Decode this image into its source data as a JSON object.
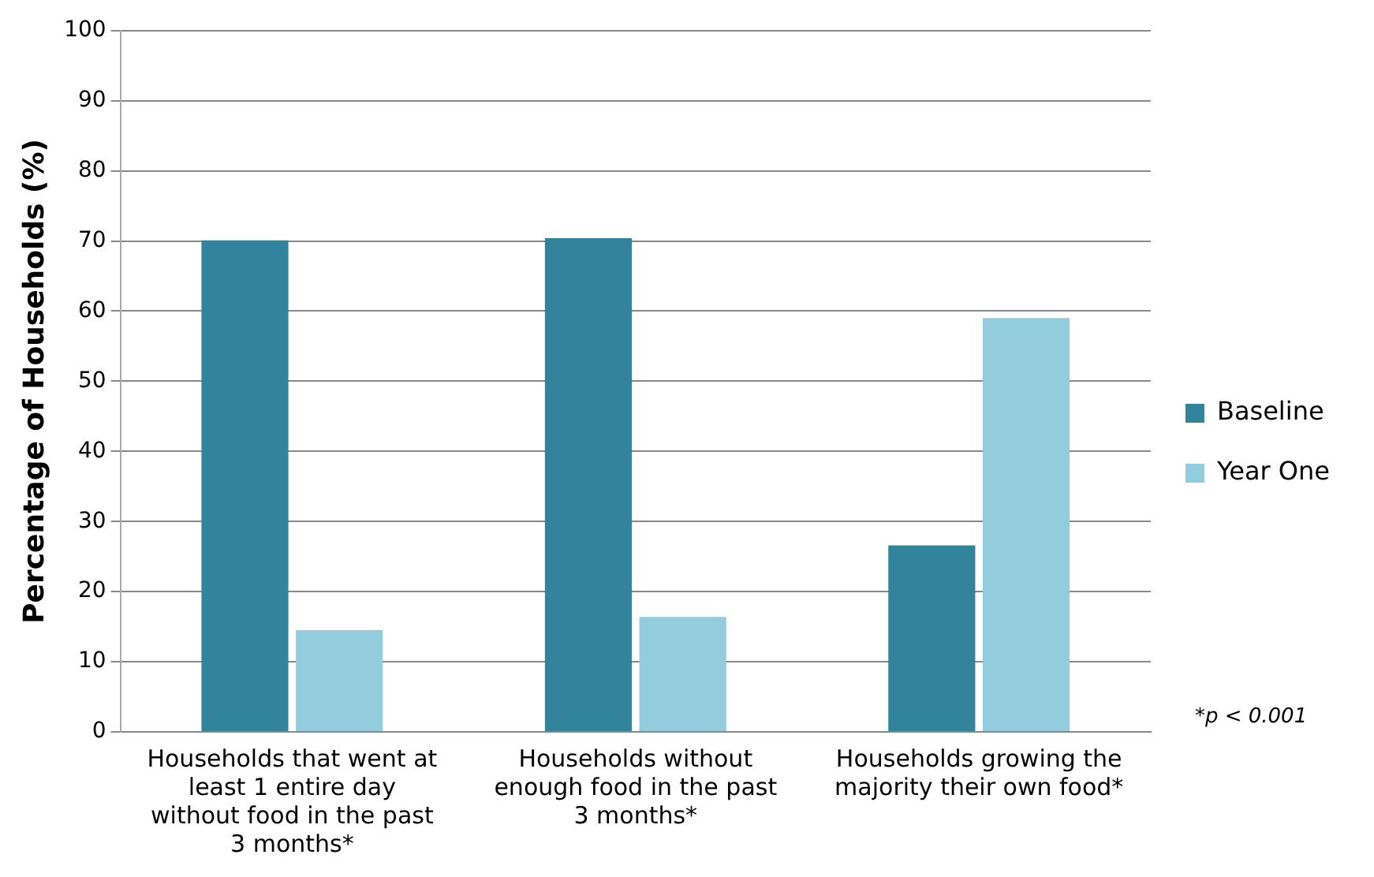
{
  "chart_data": {
    "type": "bar",
    "ylabel": "Percentage of Households (%)",
    "categories": [
      "Households that went at least 1 entire day without food in the past 3 months*",
      "Households without enough food in the past 3 months*",
      "Households growing the majority their own food*"
    ],
    "series": [
      {
        "name": "Baseline",
        "color": "#31849b",
        "values": [
          70.1,
          70.4,
          26.6
        ]
      },
      {
        "name": "Year One",
        "color": "#93cddd",
        "values": [
          14.5,
          16.4,
          59
        ]
      }
    ],
    "ylim": [
      0,
      100
    ],
    "yticks": [
      0,
      10,
      20,
      30,
      40,
      50,
      60,
      70,
      80,
      90,
      100
    ],
    "grid": "y",
    "legend": "right",
    "annotations": [
      "*p < 0.001"
    ]
  }
}
